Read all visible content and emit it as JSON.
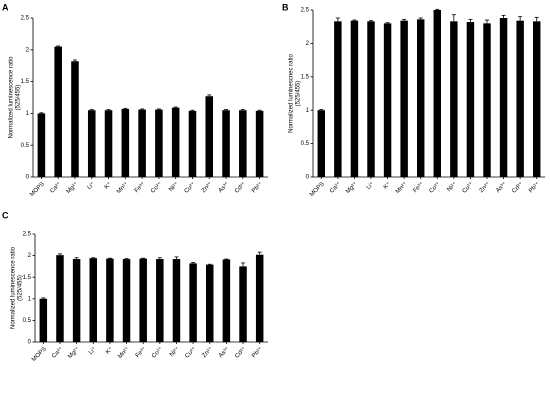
{
  "chart_data": [
    {
      "type": "bar",
      "label": "A",
      "ylabel": [
        "Normalized luminescence ratio",
        "(525/455)"
      ],
      "categories": [
        "MOPS",
        "Ca²⁺",
        "Mg²⁺",
        "Li⁺",
        "K⁺",
        "Mn²⁺",
        "Fe³⁺",
        "Co²⁺",
        "Ni²⁺",
        "Cu²⁺",
        "Zn²⁺",
        "As³⁺",
        "Cd²⁺",
        "Pb²⁺"
      ],
      "values": [
        1.0,
        2.05,
        1.82,
        1.05,
        1.05,
        1.07,
        1.06,
        1.06,
        1.09,
        1.04,
        1.27,
        1.05,
        1.05,
        1.04
      ],
      "errors": [
        0.01,
        0.01,
        0.02,
        0.01,
        0.01,
        0.01,
        0.01,
        0.01,
        0.01,
        0.01,
        0.02,
        0.01,
        0.01,
        0.01
      ],
      "color": "#000000",
      "ylim": [
        0,
        2.5
      ],
      "yticks": [
        0,
        0.5,
        1,
        1.5,
        2,
        2.5
      ]
    },
    {
      "type": "bar",
      "label": "B",
      "ylabel": [
        "Normalized luminescnec ratio",
        "(525/455)"
      ],
      "categories": [
        "MOPS",
        "Ca²⁺",
        "Mg²⁺",
        "Li⁺",
        "K⁺",
        "Mn²⁺",
        "Fe³⁺",
        "Co²⁺",
        "Ni²⁺",
        "Cu²⁺",
        "Zn²⁺",
        "As³⁺",
        "Cd²⁺",
        "Pb²⁺"
      ],
      "values": [
        1.0,
        2.33,
        2.34,
        2.33,
        2.3,
        2.34,
        2.36,
        2.5,
        2.33,
        2.32,
        2.3,
        2.38,
        2.34,
        2.33
      ],
      "errors": [
        0.01,
        0.05,
        0.01,
        0.01,
        0.01,
        0.02,
        0.02,
        0.01,
        0.1,
        0.04,
        0.05,
        0.04,
        0.06,
        0.06
      ],
      "color": "#000000",
      "ylim": [
        0,
        2.5
      ],
      "yticks": [
        0,
        0.5,
        1,
        1.5,
        2,
        2.5
      ]
    },
    {
      "type": "bar",
      "label": "C",
      "ylabel": [
        "Normalized luminescence ratio",
        "(525/455)"
      ],
      "categories": [
        "MOPS",
        "Ca²⁺",
        "Mg²⁺",
        "Li⁺",
        "K⁺",
        "Mn²⁺",
        "Fe³⁺",
        "Co²⁺",
        "Ni²⁺",
        "Cu²⁺",
        "Zn²⁺",
        "As³⁺",
        "Cd²⁺",
        "Pb²⁺"
      ],
      "values": [
        1.0,
        2.01,
        1.92,
        1.94,
        1.93,
        1.92,
        1.93,
        1.92,
        1.92,
        1.82,
        1.79,
        1.91,
        1.75,
        2.02
      ],
      "errors": [
        0.02,
        0.03,
        0.03,
        0.01,
        0.01,
        0.01,
        0.01,
        0.03,
        0.05,
        0.02,
        0.01,
        0.01,
        0.08,
        0.06
      ],
      "color": "#000000",
      "ylim": [
        0,
        2.5
      ],
      "yticks": [
        0,
        0.5,
        1,
        1.5,
        2,
        2.5
      ]
    }
  ]
}
